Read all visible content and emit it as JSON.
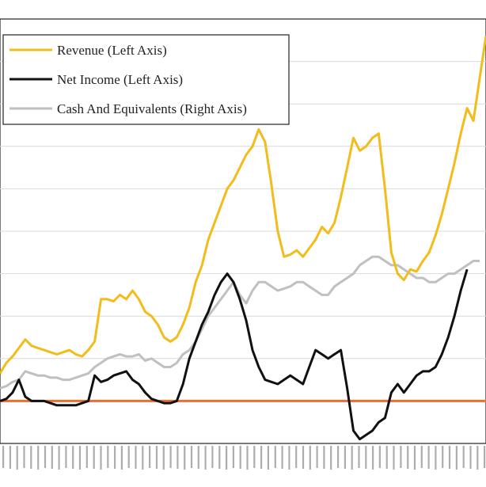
{
  "chart_data": {
    "type": "line",
    "title": "",
    "xlabel": "",
    "ylabel": "",
    "y_range_left": [
      0,
      100
    ],
    "grid": "horizontal",
    "legend": {
      "placement": "top-left",
      "entries": [
        {
          "label": "Revenue (Left Axis)",
          "color": "#f2bc1b"
        },
        {
          "label": "Net Income (Left Axis)",
          "color": "#111111"
        },
        {
          "label": "Cash And Equivalents (Right Axis)",
          "color": "#c0c0c0"
        }
      ]
    },
    "reference_line": {
      "value": 10,
      "color": "#f26b2e"
    },
    "x_count": 70,
    "series": [
      {
        "name": "Revenue (Left Axis)",
        "color": "#f2bc1b",
        "values": [
          [
            0,
            16.5
          ],
          [
            3,
            19
          ],
          [
            6,
            20.5
          ],
          [
            9,
            22.5
          ],
          [
            12,
            24.5
          ],
          [
            15,
            23
          ],
          [
            18,
            22.5
          ],
          [
            21,
            22
          ],
          [
            24,
            21.5
          ],
          [
            27,
            21
          ],
          [
            30,
            21.5
          ],
          [
            33,
            22
          ],
          [
            36,
            21
          ],
          [
            39,
            20.5
          ],
          [
            42,
            22
          ],
          [
            45,
            24
          ],
          [
            48,
            34
          ],
          [
            51,
            34
          ],
          [
            54,
            33.5
          ],
          [
            57,
            35
          ],
          [
            60,
            34
          ],
          [
            63,
            36
          ],
          [
            66,
            34
          ],
          [
            69,
            31
          ],
          [
            72,
            30
          ],
          [
            75,
            28
          ],
          [
            78,
            25
          ],
          [
            81,
            24
          ],
          [
            84,
            25
          ],
          [
            87,
            28
          ],
          [
            90,
            32
          ],
          [
            93,
            38
          ],
          [
            96,
            42
          ],
          [
            99,
            48
          ],
          [
            102,
            52
          ],
          [
            105,
            56
          ],
          [
            108,
            60
          ],
          [
            111,
            62
          ],
          [
            114,
            65
          ],
          [
            117,
            68
          ],
          [
            120,
            70
          ],
          [
            123,
            74
          ],
          [
            126,
            71
          ],
          [
            129,
            61
          ],
          [
            132,
            50
          ],
          [
            135,
            44
          ],
          [
            138,
            44.5
          ],
          [
            141,
            45.5
          ],
          [
            144,
            44
          ],
          [
            147,
            46
          ],
          [
            150,
            48
          ],
          [
            153,
            51
          ],
          [
            156,
            49.5
          ],
          [
            159,
            52
          ],
          [
            162,
            58
          ],
          [
            165,
            65
          ],
          [
            168,
            72
          ],
          [
            171,
            69
          ],
          [
            174,
            70
          ],
          [
            177,
            72
          ],
          [
            180,
            73
          ],
          [
            183,
            60
          ],
          [
            186,
            45
          ],
          [
            189,
            40
          ],
          [
            192,
            38.5
          ],
          [
            195,
            41
          ],
          [
            198,
            40.5
          ],
          [
            201,
            43
          ],
          [
            204,
            45
          ],
          [
            207,
            49
          ],
          [
            210,
            54
          ],
          [
            213,
            60
          ],
          [
            216,
            66
          ],
          [
            219,
            73
          ],
          [
            222,
            79
          ],
          [
            225,
            76
          ],
          [
            228,
            86
          ],
          [
            231,
            96
          ]
        ]
      },
      {
        "name": "Net Income (Left Axis)",
        "color": "#111111",
        "values": [
          [
            0,
            10
          ],
          [
            3,
            10.5
          ],
          [
            6,
            12
          ],
          [
            9,
            15
          ],
          [
            12,
            11
          ],
          [
            15,
            10
          ],
          [
            18,
            10
          ],
          [
            21,
            10
          ],
          [
            24,
            9.5
          ],
          [
            27,
            9
          ],
          [
            30,
            9
          ],
          [
            33,
            9
          ],
          [
            36,
            9
          ],
          [
            39,
            9.5
          ],
          [
            42,
            10
          ],
          [
            45,
            16
          ],
          [
            48,
            14.5
          ],
          [
            51,
            15
          ],
          [
            54,
            16
          ],
          [
            57,
            16.5
          ],
          [
            60,
            17
          ],
          [
            63,
            15
          ],
          [
            66,
            14
          ],
          [
            69,
            12
          ],
          [
            72,
            10.5
          ],
          [
            75,
            10
          ],
          [
            78,
            9.5
          ],
          [
            81,
            9.5
          ],
          [
            84,
            10
          ],
          [
            87,
            14
          ],
          [
            90,
            20
          ],
          [
            93,
            24
          ],
          [
            96,
            28
          ],
          [
            99,
            31
          ],
          [
            102,
            35
          ],
          [
            105,
            38
          ],
          [
            108,
            40
          ],
          [
            111,
            38
          ],
          [
            114,
            34
          ],
          [
            117,
            29
          ],
          [
            120,
            22
          ],
          [
            123,
            18
          ],
          [
            126,
            15
          ],
          [
            129,
            14.5
          ],
          [
            132,
            14
          ],
          [
            135,
            15
          ],
          [
            138,
            16
          ],
          [
            141,
            15
          ],
          [
            144,
            14
          ],
          [
            147,
            18
          ],
          [
            150,
            22
          ],
          [
            153,
            21
          ],
          [
            156,
            20
          ],
          [
            159,
            21
          ],
          [
            162,
            22
          ],
          [
            165,
            13
          ],
          [
            168,
            3
          ],
          [
            171,
            1
          ],
          [
            174,
            2
          ],
          [
            177,
            3
          ],
          [
            180,
            5
          ],
          [
            183,
            6
          ],
          [
            186,
            12
          ],
          [
            189,
            14
          ],
          [
            192,
            12
          ],
          [
            195,
            14
          ],
          [
            198,
            16
          ],
          [
            201,
            17
          ],
          [
            204,
            17
          ],
          [
            207,
            18
          ],
          [
            210,
            21
          ],
          [
            213,
            25
          ],
          [
            216,
            30
          ],
          [
            219,
            36
          ],
          [
            222,
            41
          ]
        ]
      },
      {
        "name": "Cash And Equivalents (Right Axis)",
        "color": "#c0c0c0",
        "values": [
          [
            0,
            13
          ],
          [
            3,
            13.5
          ],
          [
            6,
            14.5
          ],
          [
            9,
            15
          ],
          [
            12,
            17
          ],
          [
            15,
            16.5
          ],
          [
            18,
            16
          ],
          [
            21,
            16
          ],
          [
            24,
            15.5
          ],
          [
            27,
            15.5
          ],
          [
            30,
            15
          ],
          [
            33,
            15
          ],
          [
            36,
            15.5
          ],
          [
            39,
            16
          ],
          [
            42,
            16.5
          ],
          [
            45,
            18
          ],
          [
            48,
            19
          ],
          [
            51,
            20
          ],
          [
            54,
            20.5
          ],
          [
            57,
            21
          ],
          [
            60,
            20.5
          ],
          [
            63,
            20.5
          ],
          [
            66,
            21
          ],
          [
            69,
            19.5
          ],
          [
            72,
            20
          ],
          [
            75,
            19
          ],
          [
            78,
            18
          ],
          [
            81,
            18
          ],
          [
            84,
            19
          ],
          [
            87,
            21
          ],
          [
            90,
            22
          ],
          [
            93,
            24
          ],
          [
            96,
            27
          ],
          [
            99,
            30
          ],
          [
            102,
            32
          ],
          [
            105,
            34
          ],
          [
            108,
            36
          ],
          [
            111,
            38
          ],
          [
            114,
            35
          ],
          [
            117,
            33
          ],
          [
            120,
            36
          ],
          [
            123,
            38
          ],
          [
            126,
            38
          ],
          [
            129,
            37
          ],
          [
            132,
            36
          ],
          [
            135,
            36.5
          ],
          [
            138,
            37
          ],
          [
            141,
            38
          ],
          [
            144,
            38
          ],
          [
            147,
            37
          ],
          [
            150,
            36
          ],
          [
            153,
            35
          ],
          [
            156,
            35
          ],
          [
            159,
            37
          ],
          [
            162,
            38
          ],
          [
            165,
            39
          ],
          [
            168,
            40
          ],
          [
            171,
            42
          ],
          [
            174,
            43
          ],
          [
            177,
            44
          ],
          [
            180,
            44
          ],
          [
            183,
            43
          ],
          [
            186,
            42
          ],
          [
            189,
            42
          ],
          [
            192,
            41
          ],
          [
            195,
            40
          ],
          [
            198,
            39
          ],
          [
            201,
            39
          ],
          [
            204,
            38
          ],
          [
            207,
            38
          ],
          [
            210,
            39
          ],
          [
            213,
            40
          ],
          [
            216,
            40
          ],
          [
            219,
            41
          ],
          [
            222,
            42
          ],
          [
            225,
            43
          ],
          [
            228,
            43
          ]
        ]
      }
    ]
  }
}
